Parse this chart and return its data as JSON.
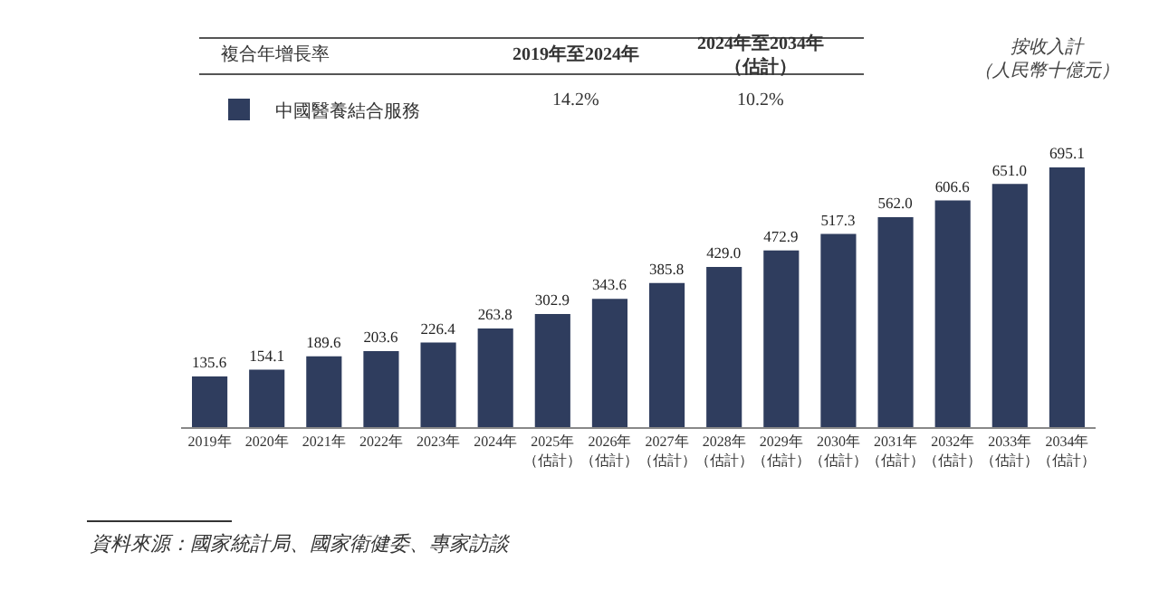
{
  "chart_data": {
    "type": "bar",
    "categories": [
      "2019年",
      "2020年",
      "2021年",
      "2022年",
      "2023年",
      "2024年",
      "2025年（估計）",
      "2026年（估計）",
      "2027年（估計）",
      "2028年（估計）",
      "2029年（估計）",
      "2030年（估計）",
      "2031年（估計）",
      "2032年（估計）",
      "2033年（估計）",
      "2034年（估計）"
    ],
    "series": [
      {
        "name": "中國醫養結合服務",
        "color": "#2f3d5e",
        "values": [
          135.6,
          154.1,
          189.6,
          203.6,
          226.4,
          263.8,
          302.9,
          343.6,
          385.8,
          429.0,
          472.9,
          517.3,
          562.0,
          606.6,
          651.0,
          695.1
        ],
        "value_labels": [
          "135.6",
          "154.1",
          "189.6",
          "203.6",
          "226.4",
          "263.8",
          "302.9",
          "343.6",
          "385.8",
          "429.0",
          "472.9",
          "517.3",
          "562.0",
          "606.6",
          "651.0",
          "695.1"
        ]
      }
    ],
    "ylabel": "按收入計（人民幣十億元）",
    "annotations": [
      "複合年增長率",
      "2019年至2024年",
      "2024年至2034年（估計）",
      "14.2%",
      "10.2%",
      "資料來源：國家統計局、國家衛健委、專家訪談"
    ],
    "legend": "top left",
    "grid": false
  }
}
